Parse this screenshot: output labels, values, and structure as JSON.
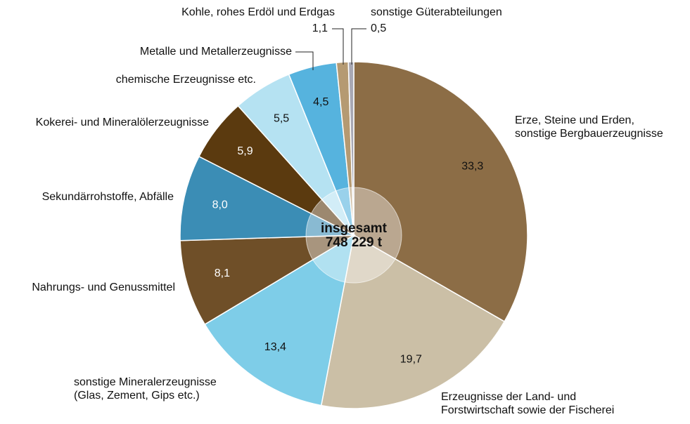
{
  "chart_data": {
    "type": "pie",
    "categories": [
      "Erze, Steine und Erden,\nsonstige Bergbauerzeugnisse",
      "Erzeugnisse der Land- und\nForstwirtschaft sowie der Fischerei",
      "sonstige Mineralerzeugnisse\n(Glas, Zement, Gips etc.)",
      "Nahrungs- und Genussmittel",
      "Sekundärrohstoffe, Abfälle",
      "Kokerei- und Mineralölerzeugnisse",
      "chemische Erzeugnisse etc.",
      "Metalle und Metallerzeugnisse",
      "Kohle, rohes Erdöl und Erdgas",
      "sonstige Güterabteilungen"
    ],
    "values": [
      33.3,
      19.7,
      13.4,
      8.1,
      8.0,
      5.9,
      5.5,
      4.5,
      1.1,
      0.5
    ],
    "value_labels": [
      "33,3",
      "19,7",
      "13,4",
      "8,1",
      "8,0",
      "5,9",
      "5,5",
      "4,5",
      "1,1",
      "0,5"
    ],
    "colors": [
      "#8c6d46",
      "#cbbfa6",
      "#7ecde8",
      "#6f4f28",
      "#3b8db5",
      "#5b3a0f",
      "#b5e2f2",
      "#56b3de",
      "#b59a72",
      "#a8a8b4"
    ],
    "center_label": [
      "insgesamt",
      "748 229 t"
    ]
  }
}
